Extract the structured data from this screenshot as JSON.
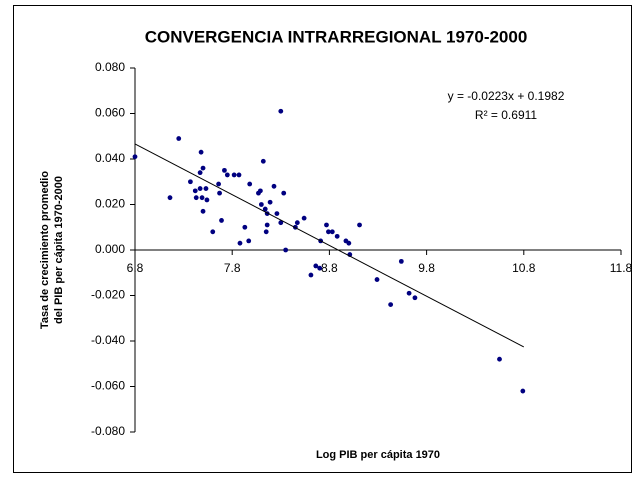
{
  "chart_data": {
    "type": "scatter",
    "title": "CONVERGENCIA INTRARREGIONAL  1970-2000",
    "x_label": "Log PIB per cápita 1970",
    "y_label": [
      "Tasa de crecimiento promedio",
      "del PIB per cápita 1970-2000"
    ],
    "equation": "y = -0.0223x + 0.1982",
    "r_squared": "R² = 0.6911",
    "color": "#000080",
    "line_color": "#000000",
    "x": [
      6.8,
      7.16,
      7.25,
      7.37,
      7.42,
      7.43,
      7.47,
      7.48,
      7.47,
      7.5,
      7.49,
      7.5,
      7.53,
      7.54,
      7.6,
      7.66,
      7.67,
      7.69,
      7.72,
      7.75,
      7.82,
      7.87,
      7.88,
      7.93,
      7.97,
      7.98,
      8.07,
      8.09,
      8.1,
      8.12,
      8.14,
      8.15,
      8.16,
      8.16,
      8.19,
      8.23,
      8.26,
      8.3,
      8.3,
      8.33,
      8.35,
      8.45,
      8.47,
      8.54,
      8.61,
      8.66,
      8.7,
      8.71,
      8.77,
      8.79,
      8.83,
      8.88,
      8.97,
      9.0,
      9.01,
      9.11,
      9.29,
      9.43,
      9.54,
      9.62,
      9.68,
      10.55,
      10.79
    ],
    "values": [
      0.041,
      0.023,
      0.049,
      0.03,
      0.026,
      0.023,
      0.027,
      0.043,
      0.034,
      0.036,
      0.023,
      0.017,
      0.027,
      0.022,
      0.008,
      0.029,
      0.025,
      0.013,
      0.035,
      0.033,
      0.033,
      0.033,
      0.003,
      0.01,
      0.004,
      0.029,
      0.025,
      0.026,
      0.02,
      0.039,
      0.018,
      0.008,
      0.016,
      0.011,
      0.021,
      0.028,
      0.016,
      0.061,
      0.012,
      0.025,
      0.0,
      0.01,
      0.012,
      0.014,
      -0.011,
      -0.007,
      -0.008,
      0.004,
      0.011,
      0.008,
      0.008,
      0.006,
      0.004,
      0.003,
      -0.002,
      0.011,
      -0.013,
      -0.024,
      -0.005,
      -0.019,
      -0.021,
      -0.048,
      -0.062
    ],
    "trendline": {
      "x": [
        6.8,
        10.8
      ],
      "y": [
        0.0466,
        -0.0426
      ]
    },
    "xlim": [
      6.8,
      11.8
    ],
    "xticks": [
      6.8,
      7.8,
      8.8,
      9.8,
      10.8,
      11.8
    ],
    "ylim": [
      -0.08,
      0.08
    ],
    "yticks": [
      {
        "value": -0.08,
        "label": "-0.080"
      },
      {
        "value": -0.06,
        "label": "-0.060"
      },
      {
        "value": -0.04,
        "label": "-0.040"
      },
      {
        "value": -0.02,
        "label": "-0.020"
      },
      {
        "value": 0,
        "label": "0.000"
      },
      {
        "value": 0.02,
        "label": "0.020"
      },
      {
        "value": 0.04,
        "label": "0.040"
      },
      {
        "value": 0.06,
        "label": "0.060"
      },
      {
        "value": 0.08,
        "label": "0.080"
      }
    ]
  }
}
